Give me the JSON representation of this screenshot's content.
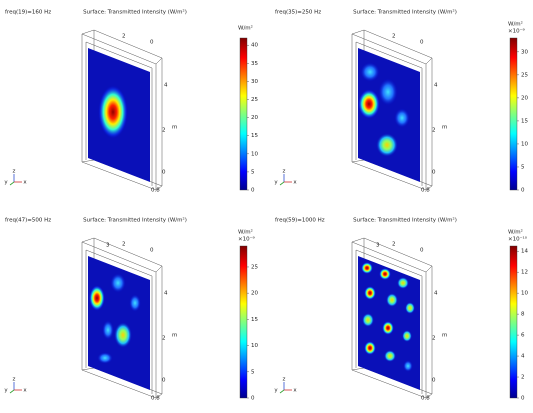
{
  "chart_data": [
    {
      "type": "surface",
      "label": "freq(19)=160 Hz",
      "title": "Surface: Transmitted Intensity (W/m²)",
      "unit": "W/m²",
      "colormap": "jet",
      "ylim": [
        0,
        42
      ],
      "yticks": [
        0,
        5,
        10,
        15,
        20,
        25,
        30,
        35,
        40
      ],
      "axis_labels": [
        "2",
        "0",
        "4",
        "2",
        "m",
        "0",
        "0.8"
      ],
      "triad": [
        "y",
        "z",
        "x"
      ]
    },
    {
      "type": "surface",
      "label": "freq(35)=250 Hz",
      "title": "Surface: Transmitted Intensity (W/m²)",
      "unit": "W/m²",
      "exponent": "×10⁻⁹",
      "colormap": "jet",
      "ylim": [
        0,
        33
      ],
      "yticks": [
        0,
        5,
        10,
        15,
        20,
        25,
        30
      ],
      "axis_labels": [
        "2",
        "0",
        "4",
        "2",
        "m",
        "0",
        "0.8"
      ],
      "triad": [
        "y",
        "z",
        "x"
      ]
    },
    {
      "type": "surface",
      "label": "freq(47)=500 Hz",
      "title": "Surface: Transmitted Intensity (W/m²)",
      "unit": "W/m²",
      "exponent": "×10⁻⁹",
      "colormap": "jet",
      "ylim": [
        0,
        29
      ],
      "yticks": [
        0,
        5,
        10,
        15,
        20,
        25
      ],
      "axis_labels": [
        "3",
        "2",
        "0",
        "4",
        "2",
        "m",
        "0",
        "0.8"
      ],
      "triad": [
        "y",
        "z",
        "x"
      ]
    },
    {
      "type": "surface",
      "label": "freq(59)=1000 Hz",
      "title": "Surface: Transmitted Intensity (W/m²)",
      "unit": "W/m²",
      "exponent": "×10⁻¹⁰",
      "colormap": "jet",
      "ylim": [
        0,
        14.5
      ],
      "yticks": [
        0,
        2,
        4,
        6,
        8,
        10,
        12,
        14
      ],
      "axis_labels": [
        "3",
        "2",
        "0",
        "4",
        "2",
        "m",
        "0",
        "0.8"
      ],
      "triad": [
        "y",
        "z",
        "x"
      ]
    }
  ]
}
